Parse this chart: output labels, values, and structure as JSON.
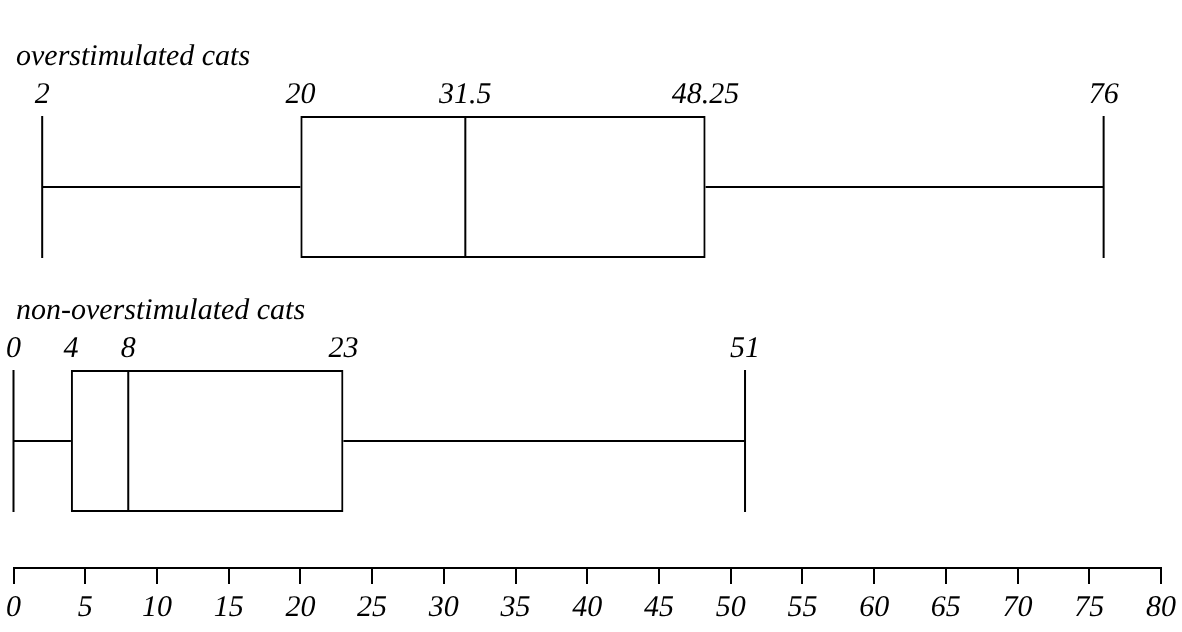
{
  "chart_data": {
    "type": "box",
    "orientation": "horizontal",
    "categories": [
      "overstimulated cats",
      "non-overstimulated cats"
    ],
    "boxes": [
      {
        "low": 2,
        "q1": 20,
        "median": 31.5,
        "q3": 48.25,
        "high": 76
      },
      {
        "low": 0,
        "q1": 4,
        "median": 8,
        "q3": 23,
        "high": 51
      }
    ],
    "annotations": [
      {
        "text": "2",
        "x": 2,
        "y": "overstimulated cats"
      },
      {
        "text": "20",
        "x": 20,
        "y": "overstimulated cats"
      },
      {
        "text": "31.5",
        "x": 31.5,
        "y": "overstimulated cats"
      },
      {
        "text": "48.25",
        "x": 48.25,
        "y": "overstimulated cats"
      },
      {
        "text": "76",
        "x": 76,
        "y": "overstimulated cats"
      },
      {
        "text": "0",
        "x": 0,
        "y": "non-overstimulated cats"
      },
      {
        "text": "4",
        "x": 4,
        "y": "non-overstimulated cats"
      },
      {
        "text": "8",
        "x": 8,
        "y": "non-overstimulated cats"
      },
      {
        "text": "23",
        "x": 23,
        "y": "non-overstimulated cats"
      },
      {
        "text": "51",
        "x": 51,
        "y": "non-overstimulated cats"
      }
    ],
    "color": "#000000",
    "xlim": [
      0,
      80
    ],
    "xticks": [
      0,
      5,
      10,
      15,
      20,
      25,
      30,
      35,
      40,
      45,
      50,
      55,
      60,
      65,
      70,
      75,
      80
    ],
    "grid": false,
    "tick_labels": "x",
    "legend": false
  }
}
